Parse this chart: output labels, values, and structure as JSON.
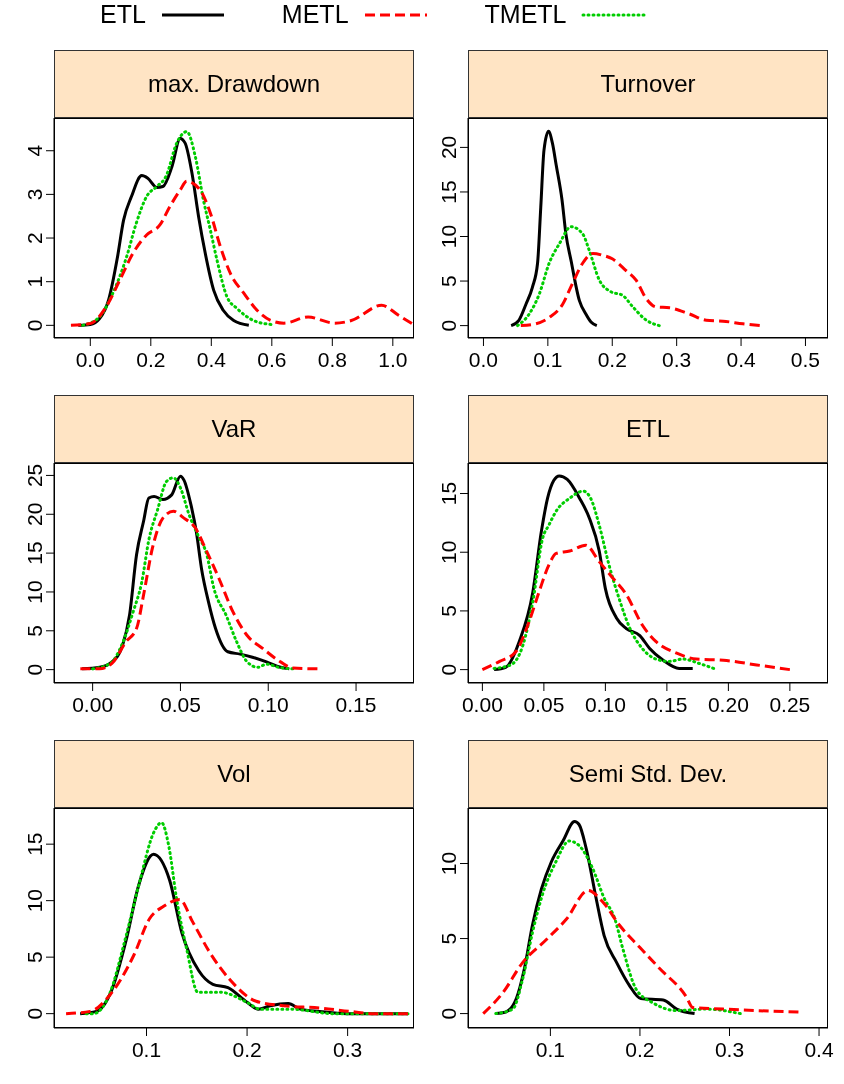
{
  "chart_data": [
    {
      "type": "line",
      "title": "max. Drawdown",
      "legend": "top",
      "xlim": [
        -0.12,
        1.07
      ],
      "ylim": [
        -0.29,
        4.75
      ],
      "xticks": [
        {
          "value": 0,
          "label": "0.0"
        },
        {
          "value": 0.2,
          "label": "0.2"
        },
        {
          "value": 0.4,
          "label": "0.4"
        },
        {
          "value": 0.6,
          "label": "0.6"
        },
        {
          "value": 0.8,
          "label": "0.8"
        },
        {
          "value": 1,
          "label": "1.0"
        }
      ],
      "yticks": [
        0,
        1,
        2,
        3,
        4
      ],
      "series": [
        {
          "name": "ETL",
          "color": "#000000",
          "line_style": "solid",
          "x": [
            -0.04,
            0,
            0.03,
            0.06,
            0.09,
            0.11,
            0.136,
            0.17,
            0.19,
            0.22,
            0.24,
            0.27,
            0.297,
            0.313,
            0.336,
            0.358,
            0.38,
            0.408,
            0.44,
            0.474,
            0.524
          ],
          "values": [
            0,
            0.02,
            0.15,
            0.57,
            1.57,
            2.41,
            2.95,
            3.43,
            3.37,
            3.16,
            3.18,
            3.64,
            4.28,
            4.18,
            3.49,
            2.49,
            1.65,
            0.8,
            0.34,
            0.11,
            0
          ]
        },
        {
          "name": "METL",
          "color": "#ff0000",
          "line_style": "dashed",
          "x": [
            -0.064,
            0,
            0.052,
            0.097,
            0.141,
            0.186,
            0.23,
            0.263,
            0.297,
            0.319,
            0.363,
            0.397,
            0.43,
            0.463,
            0.508,
            0.552,
            0.597,
            0.64,
            0.72,
            0.808,
            0.863,
            0.963,
            1.019,
            1.063
          ],
          "values": [
            0,
            0.04,
            0.42,
            1.03,
            1.65,
            2.07,
            2.3,
            2.72,
            3.1,
            3.3,
            3.1,
            2.57,
            1.8,
            1.19,
            0.73,
            0.34,
            0.11,
            0.05,
            0.19,
            0.05,
            0.11,
            0.46,
            0.23,
            0.04
          ]
        },
        {
          "name": "TMETL",
          "color": "#00cd00",
          "line_style": "dotted",
          "x": [
            -0.025,
            0.03,
            0.074,
            0.12,
            0.152,
            0.186,
            0.22,
            0.25,
            0.286,
            0.319,
            0.347,
            0.374,
            0.397,
            0.419,
            0.452,
            0.486,
            0.54,
            0.597
          ],
          "values": [
            0,
            0.19,
            0.73,
            1.57,
            2.34,
            2.95,
            3.18,
            3.41,
            4.18,
            4.44,
            3.87,
            2.87,
            2.18,
            1.49,
            0.65,
            0.38,
            0.11,
            0.02
          ]
        }
      ]
    },
    {
      "type": "line",
      "title": "Turnover",
      "xlim": [
        -0.024,
        0.535
      ],
      "ylim": [
        -1.39,
        23.3
      ],
      "xticks": [
        {
          "value": 0,
          "label": "0.0"
        },
        0.1,
        0.2,
        0.3,
        0.4,
        0.5
      ],
      "yticks": [
        0,
        5,
        10,
        15,
        20
      ],
      "series": [
        {
          "color": "#000000",
          "line_style": "solid",
          "x": [
            0.043,
            0.055,
            0.066,
            0.076,
            0.084,
            0.089,
            0.094,
            0.101,
            0.107,
            0.113,
            0.122,
            0.128,
            0.136,
            0.149,
            0.159,
            0.167,
            0.176
          ],
          "values": [
            0,
            0.6,
            2.4,
            4.3,
            7,
            13.3,
            19.7,
            21.8,
            20.5,
            18,
            14.1,
            10.3,
            7.3,
            2.8,
            1.3,
            0.4,
            0
          ]
        },
        {
          "color": "#ff0000",
          "line_style": "dashed",
          "x": [
            0.058,
            0.081,
            0.102,
            0.123,
            0.138,
            0.154,
            0.17,
            0.185,
            0.2,
            0.221,
            0.237,
            0.253,
            0.268,
            0.289,
            0.32,
            0.346,
            0.372,
            0.403,
            0.429
          ],
          "values": [
            0,
            0.2,
            0.9,
            2.4,
            4.7,
            7,
            8.1,
            7.9,
            7.5,
            6.2,
            5.1,
            3,
            2.1,
            2,
            1.3,
            0.6,
            0.5,
            0.2,
            0
          ]
        },
        {
          "color": "#00cd00",
          "line_style": "dotted",
          "x": [
            0.053,
            0.071,
            0.087,
            0.102,
            0.118,
            0.136,
            0.154,
            0.164,
            0.18,
            0.198,
            0.216,
            0.232,
            0.253,
            0.273
          ],
          "values": [
            0,
            1.3,
            3.6,
            7,
            9.2,
            11.1,
            10.3,
            8.5,
            5.1,
            3.8,
            3.4,
            2.1,
            0.6,
            0
          ]
        }
      ]
    },
    {
      "type": "line",
      "title": "VaR",
      "xlim": [
        -0.022,
        0.183
      ],
      "ylim": [
        -1.72,
        26.6
      ],
      "xticks": [
        {
          "value": 0,
          "label": "0.00"
        },
        0.05,
        {
          "value": 0.1,
          "label": "0.10"
        },
        0.15
      ],
      "yticks": [
        0,
        5,
        10,
        15,
        20,
        25
      ],
      "series": [
        {
          "color": "#000000",
          "line_style": "solid",
          "x": [
            -0.006,
            0.004,
            0.011,
            0.017,
            0.021,
            0.025,
            0.029,
            0.032,
            0.035,
            0.04,
            0.045,
            0.05,
            0.052,
            0.056,
            0.059,
            0.062,
            0.066,
            0.07,
            0.077,
            0.084,
            0.091,
            0.099,
            0.107,
            0.112
          ],
          "values": [
            0.1,
            0.3,
            1,
            3.1,
            7,
            14.8,
            19.1,
            22.1,
            22.3,
            21.9,
            22.5,
            24.9,
            24.4,
            21.2,
            17.8,
            13,
            8.7,
            5.3,
            2.3,
            2,
            1.6,
            1,
            0.3,
            0.1
          ]
        },
        {
          "color": "#ff0000",
          "line_style": "dashed",
          "x": [
            -0.007,
            0.004,
            0.011,
            0.019,
            0.025,
            0.029,
            0.034,
            0.04,
            0.046,
            0.052,
            0.058,
            0.065,
            0.072,
            0.08,
            0.088,
            0.097,
            0.107,
            0.114,
            0.128
          ],
          "values": [
            0.1,
            0.1,
            0.8,
            3.6,
            5.3,
            9.6,
            15.6,
            19.5,
            20.4,
            19.5,
            18.4,
            15.2,
            11.7,
            7.4,
            4.4,
            2.7,
            1,
            0.2,
            0.1
          ]
        },
        {
          "color": "#00cd00",
          "line_style": "dotted",
          "x": [
            0,
            0.01,
            0.017,
            0.023,
            0.028,
            0.032,
            0.037,
            0.042,
            0.046,
            0.05,
            0.055,
            0.06,
            0.065,
            0.069,
            0.076,
            0.082,
            0.088,
            0.094,
            0.099,
            0.106,
            0.114
          ],
          "values": [
            0.1,
            0.8,
            3.4,
            7.4,
            11.3,
            16.7,
            20.6,
            24.2,
            24.7,
            23.4,
            19.9,
            17.3,
            14.8,
            10.5,
            7,
            3.6,
            1,
            0.3,
            0.7,
            0.3,
            0.1
          ]
        }
      ]
    },
    {
      "type": "line",
      "title": "ETL",
      "xlim": [
        -0.0117,
        0.281
      ],
      "ylim": [
        -1.14,
        17.6
      ],
      "xticks": [
        {
          "value": 0,
          "label": "0.00"
        },
        0.05,
        {
          "value": 0.1,
          "label": "0.10"
        },
        0.15,
        {
          "value": 0.2,
          "label": "0.20"
        },
        0.25
      ],
      "yticks": [
        0,
        5,
        10,
        15
      ],
      "series": [
        {
          "color": "#000000",
          "line_style": "solid",
          "x": [
            0.0095,
            0.019,
            0.03,
            0.041,
            0.048,
            0.053,
            0.058,
            0.0625,
            0.069,
            0.079,
            0.087,
            0.095,
            0.1,
            0.109,
            0.117,
            0.128,
            0.136,
            0.147,
            0.16,
            0.171
          ],
          "values": [
            0,
            0.2,
            2.4,
            6.6,
            11.8,
            14.6,
            16.1,
            16.5,
            16.2,
            14.6,
            12.9,
            10.1,
            6.9,
            4.4,
            3.5,
            2.9,
            1.8,
            0.8,
            0.1,
            0.1
          ]
        },
        {
          "color": "#ff0000",
          "line_style": "dashed",
          "x": [
            0,
            0.014,
            0.027,
            0.038,
            0.046,
            0.054,
            0.06,
            0.071,
            0.084,
            0.095,
            0.106,
            0.117,
            0.13,
            0.141,
            0.158,
            0.174,
            0.196,
            0.223,
            0.25
          ],
          "values": [
            0,
            0.7,
            1.5,
            4.1,
            6.6,
            8.9,
            9.9,
            10.1,
            10.6,
            9.2,
            7.8,
            6.4,
            3.8,
            2.4,
            1.4,
            0.9,
            0.8,
            0.4,
            0
          ]
        },
        {
          "color": "#00cd00",
          "line_style": "dotted",
          "x": [
            0.0095,
            0.023,
            0.033,
            0.041,
            0.049,
            0.054,
            0.06,
            0.071,
            0.082,
            0.088,
            0.095,
            0.103,
            0.111,
            0.12,
            0.13,
            0.141,
            0.152,
            0.163,
            0.177,
            0.188
          ],
          "values": [
            0.1,
            0.4,
            2.1,
            5.8,
            11.2,
            12.3,
            13.5,
            14.6,
            15.2,
            14.6,
            12.3,
            8.9,
            6.1,
            3.5,
            1.8,
            0.9,
            0.7,
            0.9,
            0.5,
            0.1
          ]
        }
      ]
    },
    {
      "type": "line",
      "title": "Vol",
      "xlim": [
        0.008,
        0.366
      ],
      "ylim": [
        -1.27,
        18.2
      ],
      "xticks": [
        0.1,
        0.2,
        0.3
      ],
      "yticks": [
        0,
        5,
        10,
        15
      ],
      "series": [
        {
          "color": "#000000",
          "line_style": "solid",
          "x": [
            0.034,
            0.05,
            0.065,
            0.08,
            0.092,
            0.107,
            0.123,
            0.135,
            0.152,
            0.166,
            0.181,
            0.2,
            0.211,
            0.223,
            0.241,
            0.253,
            0.272,
            0.299,
            0.36
          ],
          "values": [
            0,
            0.2,
            2,
            6.6,
            11.3,
            14.1,
            11.8,
            7.2,
            3.8,
            2.6,
            2.3,
            1,
            0.4,
            0.7,
            0.9,
            0.4,
            0.2,
            0,
            0
          ]
        },
        {
          "color": "#ff0000",
          "line_style": "dashed",
          "x": [
            0.02,
            0.044,
            0.064,
            0.087,
            0.103,
            0.117,
            0.133,
            0.146,
            0.163,
            0.183,
            0.209,
            0.236,
            0.272,
            0.302,
            0.326,
            0.36
          ],
          "values": [
            0,
            0.2,
            1.7,
            5.1,
            8.4,
            9.5,
            10.1,
            8.1,
            5.4,
            3,
            1.1,
            0.7,
            0.5,
            0.2,
            0,
            0
          ]
        },
        {
          "color": "#00cd00",
          "line_style": "dotted",
          "x": [
            0.04,
            0.047,
            0.064,
            0.078,
            0.093,
            0.107,
            0.115,
            0.122,
            0.13,
            0.14,
            0.151,
            0.173,
            0.2,
            0.213,
            0.243,
            0.286,
            0.36
          ],
          "values": [
            0,
            0,
            1.9,
            6.3,
            11.6,
            16,
            16.9,
            14.9,
            10.1,
            5.7,
            1.9,
            1.9,
            1,
            0.4,
            0.4,
            0,
            0
          ]
        }
      ]
    },
    {
      "type": "line",
      "title": "Semi Std. Dev.",
      "xlim": [
        0.008,
        0.41
      ],
      "ylim": [
        -0.96,
        13.7
      ],
      "xticks": [
        0.1,
        0.2,
        0.3,
        0.4
      ],
      "yticks": [
        0,
        5,
        10
      ],
      "series": [
        {
          "color": "#000000",
          "line_style": "solid",
          "x": [
            0.039,
            0.05,
            0.062,
            0.071,
            0.08,
            0.09,
            0.101,
            0.114,
            0.127,
            0.132,
            0.14,
            0.151,
            0.16,
            0.174,
            0.188,
            0.201,
            0.226,
            0.241,
            0.261
          ],
          "values": [
            0,
            0.1,
            1,
            3,
            5.9,
            8.3,
            10.1,
            11.5,
            12.8,
            12.6,
            11,
            7.7,
            5.2,
            3.4,
            1.9,
            1,
            0.9,
            0.3,
            0
          ]
        },
        {
          "color": "#ff0000",
          "line_style": "dashed",
          "x": [
            0.025,
            0.047,
            0.069,
            0.095,
            0.118,
            0.142,
            0.159,
            0.177,
            0.2,
            0.222,
            0.252,
            0.259,
            0.293,
            0.33,
            0.377
          ],
          "values": [
            0,
            1.4,
            3.4,
            4.9,
            6.3,
            8.2,
            7.4,
            5.9,
            4.4,
            3,
            1.1,
            0.4,
            0.3,
            0.2,
            0.1
          ]
        },
        {
          "color": "#00cd00",
          "line_style": "dotted",
          "x": [
            0.039,
            0.058,
            0.069,
            0.08,
            0.091,
            0.106,
            0.121,
            0.132,
            0.147,
            0.16,
            0.172,
            0.181,
            0.196,
            0.215,
            0.241,
            0.274,
            0.312
          ],
          "values": [
            0,
            0.3,
            2.3,
            5.4,
            7.9,
            10.1,
            11.5,
            11.2,
            9.7,
            7.7,
            6.3,
            4.3,
            1.6,
            0.7,
            0.2,
            0.3,
            0
          ]
        }
      ]
    }
  ]
}
